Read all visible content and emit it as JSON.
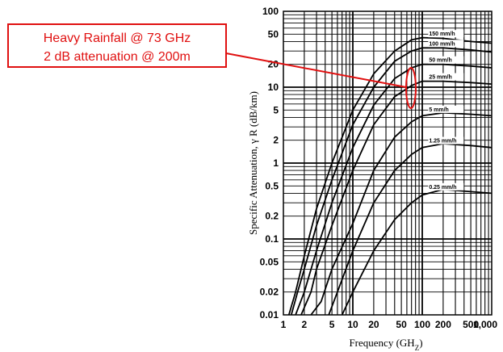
{
  "chart_data": {
    "type": "line",
    "title": "",
    "xlabel": "Frequency (GHZ)",
    "ylabel": "Specific Attenuation, γ R (dB/km)",
    "xscale": "log",
    "yscale": "log",
    "xlim": [
      1,
      1000
    ],
    "ylim": [
      0.01,
      100
    ],
    "x_ticks": [
      "1",
      "2",
      "5",
      "10",
      "20",
      "50",
      "100",
      "200",
      "500",
      "1,000"
    ],
    "y_ticks": [
      "0.01",
      "0.02",
      "0.05",
      "0.1",
      "0.2",
      "0.5",
      "1",
      "2",
      "5",
      "10",
      "20",
      "50",
      "100"
    ],
    "grid": true,
    "series": [
      {
        "name": "150 mm/h",
        "x": [
          1.2,
          1.5,
          2,
          3,
          5,
          10,
          20,
          40,
          70,
          100,
          200,
          500,
          1000
        ],
        "y": [
          0.01,
          0.02,
          0.06,
          0.25,
          1.0,
          5.0,
          15,
          30,
          42,
          45,
          44,
          40,
          38
        ]
      },
      {
        "name": "100 mm/h",
        "x": [
          1.3,
          1.6,
          2,
          3,
          5,
          10,
          20,
          40,
          70,
          100,
          200,
          500,
          1000
        ],
        "y": [
          0.01,
          0.02,
          0.04,
          0.15,
          0.6,
          3.2,
          10,
          22,
          30,
          33,
          33,
          31,
          29
        ]
      },
      {
        "name": "50 mm/h",
        "x": [
          1.5,
          2,
          3,
          5,
          10,
          20,
          40,
          70,
          100,
          200,
          500,
          1000
        ],
        "y": [
          0.01,
          0.02,
          0.07,
          0.3,
          1.6,
          5.8,
          13,
          18,
          20,
          20,
          19,
          18
        ]
      },
      {
        "name": "25 mm/h",
        "x": [
          1.8,
          2.5,
          3,
          5,
          10,
          20,
          40,
          70,
          100,
          200,
          500,
          1000
        ],
        "y": [
          0.01,
          0.02,
          0.04,
          0.15,
          0.8,
          3.2,
          7.5,
          10.5,
          12,
          12,
          11.5,
          11
        ]
      },
      {
        "name": "5 mm/h",
        "x": [
          2.5,
          3.5,
          5,
          10,
          20,
          40,
          70,
          100,
          200,
          500,
          1000
        ],
        "y": [
          0.01,
          0.015,
          0.04,
          0.16,
          0.8,
          2.2,
          3.5,
          4.2,
          4.6,
          4.4,
          4.2
        ]
      },
      {
        "name": "1.25 mm/h",
        "x": [
          4.5,
          6,
          10,
          20,
          40,
          70,
          100,
          200,
          500,
          1000
        ],
        "y": [
          0.01,
          0.02,
          0.07,
          0.3,
          0.8,
          1.3,
          1.6,
          1.8,
          1.7,
          1.6
        ]
      },
      {
        "name": "0.25 mm/h",
        "x": [
          7,
          10,
          20,
          40,
          70,
          100,
          200,
          500,
          1000
        ],
        "y": [
          0.01,
          0.02,
          0.07,
          0.18,
          0.3,
          0.38,
          0.45,
          0.42,
          0.4
        ]
      }
    ],
    "annotations": [
      {
        "text_lines": [
          "Heavy Rainfall @ 73 GHz",
          "2 dB attenuation @ 200m"
        ],
        "target_x": 73,
        "target_y": 11,
        "color": "#e01010"
      }
    ]
  }
}
